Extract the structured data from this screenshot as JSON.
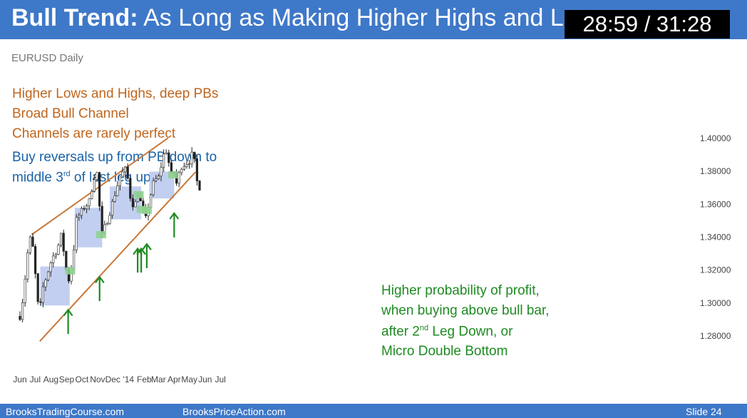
{
  "title": {
    "bold": "Bull Trend:",
    "rest": " As Long as Making Higher Highs and Lows"
  },
  "timecode": "28:59 / 31:28",
  "instrument": "EURUSD Daily",
  "notes_orange": [
    "Higher Lows and Highs, deep PBs",
    "Broad Bull Channel",
    "Channels are rarely perfect"
  ],
  "notes_blue": {
    "line1": "Buy reversals up from PB down to",
    "line2_pre": "middle 3",
    "line2_sup": "rd",
    "line2_post": " of last leg up"
  },
  "notes_green": {
    "line1": "Higher probability of profit,",
    "line2": "when buying above bull bar,",
    "line3_pre": "after 2",
    "line3_sup": "nd",
    "line3_post": " Leg Down, or",
    "line4": "Micro Double Bottom"
  },
  "footer": {
    "left": "BrooksTradingCourse.com",
    "center": "BrooksPriceAction.com",
    "right": "Slide  24"
  },
  "colors": {
    "title_bar": "#3e78c8",
    "channel_line": "#c8783a",
    "pullback_box": "#b3c3ec",
    "signal_bar": "#8fd08f",
    "arrow": "#1e8a22",
    "candle": "#222222"
  },
  "chart_data": {
    "type": "candlestick",
    "y_ticks": [
      "1.28000",
      "1.30000",
      "1.32000",
      "1.34000",
      "1.36000",
      "1.38000",
      "1.40000"
    ],
    "ylim": [
      1.27,
      1.405
    ],
    "x_labels": [
      "Jun",
      "Jul",
      "Aug",
      "Sep",
      "Oct",
      "Nov",
      "Dec",
      "'14",
      "Feb",
      "Mar",
      "Apr",
      "May",
      "Jun",
      "Jul"
    ],
    "price_path": [
      [
        "2013-06-01",
        1.292
      ],
      [
        "2013-06-08",
        1.305
      ],
      [
        "2013-06-15",
        1.328
      ],
      [
        "2013-06-20",
        1.338
      ],
      [
        "2013-06-24",
        1.341
      ],
      [
        "2013-06-28",
        1.328
      ],
      [
        "2013-07-02",
        1.315
      ],
      [
        "2013-07-06",
        1.302
      ],
      [
        "2013-07-09",
        1.284
      ],
      [
        "2013-07-10",
        1.281
      ],
      [
        "2013-07-12",
        1.305
      ],
      [
        "2013-07-22",
        1.315
      ],
      [
        "2013-08-02",
        1.326
      ],
      [
        "2013-08-15",
        1.334
      ],
      [
        "2013-08-22",
        1.342
      ],
      [
        "2013-08-30",
        1.322
      ],
      [
        "2013-09-05",
        1.314
      ],
      [
        "2013-09-14",
        1.328
      ],
      [
        "2013-09-19",
        1.35
      ],
      [
        "2013-10-05",
        1.358
      ],
      [
        "2013-10-15",
        1.361
      ],
      [
        "2013-10-25",
        1.376
      ],
      [
        "2013-10-30",
        1.381
      ],
      [
        "2013-11-04",
        1.366
      ],
      [
        "2013-11-07",
        1.338
      ],
      [
        "2013-11-15",
        1.346
      ],
      [
        "2013-11-22",
        1.352
      ],
      [
        "2013-12-05",
        1.366
      ],
      [
        "2013-12-15",
        1.377
      ],
      [
        "2013-12-28",
        1.382
      ],
      [
        "2014-01-03",
        1.366
      ],
      [
        "2014-01-12",
        1.358
      ],
      [
        "2014-01-20",
        1.366
      ],
      [
        "2014-01-28",
        1.358
      ],
      [
        "2014-02-04",
        1.351
      ],
      [
        "2014-02-10",
        1.361
      ],
      [
        "2014-02-20",
        1.374
      ],
      [
        "2014-03-01",
        1.376
      ],
      [
        "2014-03-12",
        1.391
      ],
      [
        "2014-03-18",
        1.393
      ],
      [
        "2014-03-25",
        1.377
      ],
      [
        "2014-04-01",
        1.38
      ],
      [
        "2014-04-05",
        1.372
      ],
      [
        "2014-04-15",
        1.383
      ],
      [
        "2014-04-25",
        1.385
      ],
      [
        "2014-05-05",
        1.387
      ],
      [
        "2014-05-08",
        1.397
      ],
      [
        "2014-05-13",
        1.378
      ],
      [
        "2014-05-18",
        1.371
      ],
      [
        "2014-05-23",
        1.37
      ]
    ],
    "channel_lines": [
      {
        "from": [
          "2013-06-24",
          1.3415
        ],
        "to": [
          "2014-03-20",
          1.4002
        ]
      },
      {
        "from": [
          "2013-07-10",
          1.2768
        ],
        "to": [
          "2014-05-13",
          1.3795
        ]
      }
    ],
    "pullback_boxes": [
      {
        "x": [
          "2013-07-11",
          "2013-09-07"
        ],
        "y": [
          1.2985,
          1.3222
        ]
      },
      {
        "x": [
          "2013-09-17",
          "2013-11-10"
        ],
        "y": [
          1.3338,
          1.3578
        ]
      },
      {
        "x": [
          "2013-11-25",
          "2014-01-26"
        ],
        "y": [
          1.3508,
          1.3708
        ]
      },
      {
        "x": [
          "2014-02-11",
          "2014-04-01"
        ],
        "y": [
          1.3635,
          1.3798
        ]
      }
    ],
    "signal_bars": [
      [
        "2013-09-08",
        1.3195
      ],
      [
        "2013-11-08",
        1.3415
      ],
      [
        "2014-01-21",
        1.3658
      ],
      [
        "2014-01-27",
        1.3568
      ],
      [
        "2014-02-06",
        1.3562
      ],
      [
        "2014-03-30",
        1.3778
      ]
    ],
    "arrows": [
      [
        "2013-09-04",
        1.2812,
        1.2958
      ],
      [
        "2013-11-05",
        1.3012,
        1.3158
      ],
      [
        "2014-01-19",
        1.3185,
        1.333
      ],
      [
        "2014-01-26",
        1.3185,
        1.333
      ],
      [
        "2014-02-06",
        1.3212,
        1.3358
      ],
      [
        "2014-04-01",
        1.3398,
        1.3545
      ]
    ]
  }
}
